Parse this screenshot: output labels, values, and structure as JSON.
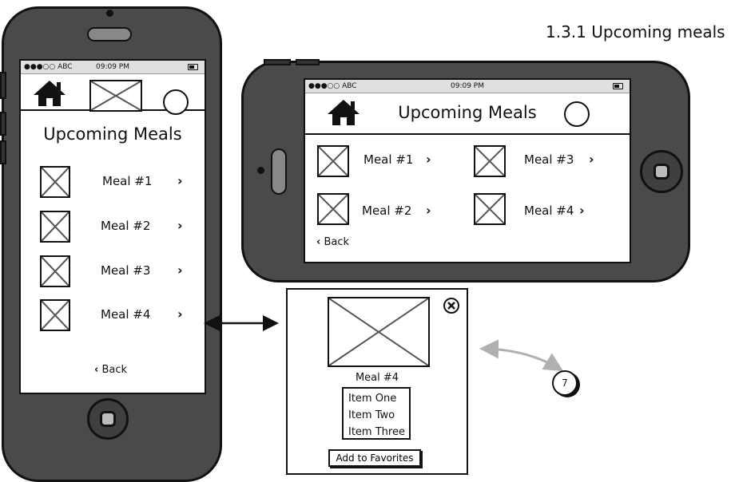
{
  "page_caption": "1.3.1 Upcoming meals",
  "status_bar": {
    "carrier": "●●●○○ ABC",
    "time": "09:09 PM"
  },
  "portrait": {
    "title": "Upcoming Meals",
    "meals": [
      {
        "label": "Meal #1"
      },
      {
        "label": "Meal #2"
      },
      {
        "label": "Meal #3"
      },
      {
        "label": "Meal #4"
      }
    ],
    "back_label": "Back"
  },
  "landscape": {
    "title": "Upcoming Meals",
    "meals": [
      {
        "label": "Meal #1"
      },
      {
        "label": "Meal #3"
      },
      {
        "label": "Meal #2"
      },
      {
        "label": "Meal #4"
      }
    ],
    "back_label": "Back"
  },
  "detail": {
    "title": "Meal #4",
    "items": [
      "Item One",
      "Item Two",
      "Item Three"
    ],
    "favorite_button": "Add to Favorites"
  },
  "badge_number": "7",
  "icons": {
    "home": "home-icon",
    "profile": "profile-circle-icon",
    "close": "close-icon",
    "chevron": "chevron-right-icon",
    "back": "chevron-left-icon",
    "placeholder": "image-placeholder-icon"
  },
  "chevron_glyph": "›",
  "back_glyph": "‹"
}
